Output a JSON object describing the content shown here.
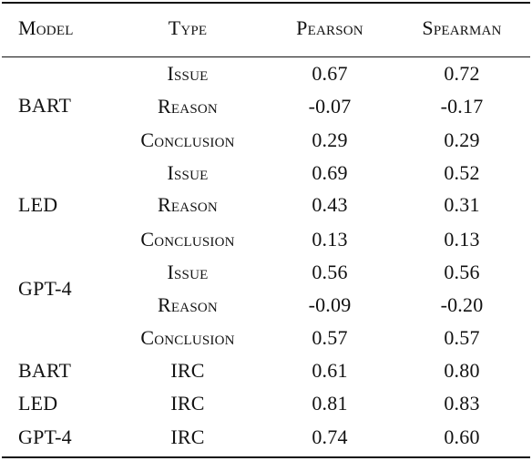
{
  "table": {
    "headers": {
      "model": "Model",
      "type": "Type",
      "pearson": "Pearson",
      "spearman": "Spearman"
    },
    "group_models": [
      "BART",
      "LED",
      "GPT-4"
    ],
    "rows": [
      {
        "type": "Issue",
        "pearson": "0.67",
        "spearman": "0.72"
      },
      {
        "type": "Reason",
        "pearson": "-0.07",
        "spearman": "-0.17"
      },
      {
        "type": "Conclusion",
        "pearson": "0.29",
        "spearman": "0.29"
      },
      {
        "type": "Issue",
        "pearson": "0.69",
        "spearman": "0.52"
      },
      {
        "type": "Reason",
        "pearson": "0.43",
        "spearman": "0.31"
      },
      {
        "type": "Conclusion",
        "pearson": "0.13",
        "spearman": "0.13"
      },
      {
        "type": "Issue",
        "pearson": "0.56",
        "spearman": "0.56"
      },
      {
        "type": "Reason",
        "pearson": "-0.09",
        "spearman": "-0.20"
      },
      {
        "type": "Conclusion",
        "pearson": "0.57",
        "spearman": "0.57"
      },
      {
        "model": "BART",
        "type": "IRC",
        "pearson": "0.61",
        "spearman": "0.80"
      },
      {
        "model": "LED",
        "type": "IRC",
        "pearson": "0.81",
        "spearman": "0.83"
      },
      {
        "model": "GPT-4",
        "type": "IRC",
        "pearson": "0.74",
        "spearman": "0.60"
      }
    ]
  }
}
